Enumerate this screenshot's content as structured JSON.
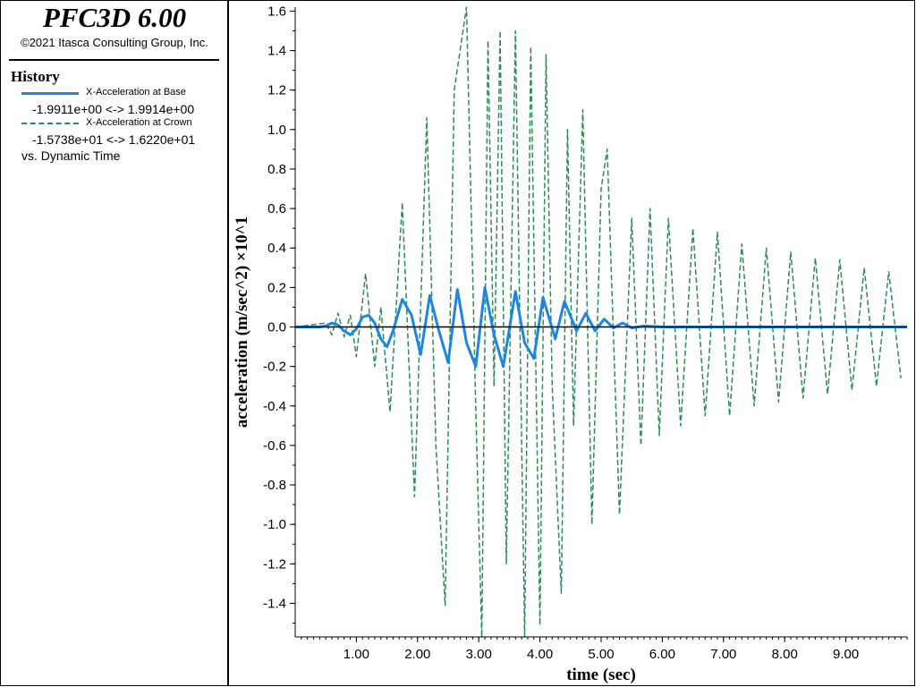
{
  "app": {
    "title": "PFC3D 6.00",
    "copyright": "©2021 Itasca Consulting Group, Inc."
  },
  "legend": {
    "heading": "History",
    "items": [
      {
        "name": "X-Acceleration at Base",
        "range": "-1.9911e+00 <->  1.9914e+00",
        "color": "#1f86e0",
        "style": "solid"
      },
      {
        "name": "X-Acceleration at Crown",
        "range": "-1.5738e+01 <->  1.6220e+01",
        "color": "#2e8b57",
        "style": "dashed"
      }
    ],
    "vs": "vs. Dynamic Time"
  },
  "chart_data": {
    "type": "line",
    "xlabel": "time (sec)",
    "ylabel": "acceleration (m/sec^2) ×10^1",
    "xlim": [
      0,
      10
    ],
    "ylim": [
      -1.57,
      1.62
    ],
    "x_ticks": [
      1,
      2,
      3,
      4,
      5,
      6,
      7,
      8,
      9
    ],
    "x_tick_labels": [
      "1.00",
      "2.00",
      "3.00",
      "4.00",
      "5.00",
      "6.00",
      "7.00",
      "8.00",
      "9.00"
    ],
    "y_ticks": [
      1.6,
      1.4,
      1.2,
      1.0,
      0.8,
      0.6,
      0.4,
      0.2,
      0.0,
      -0.2,
      -0.4,
      -0.6,
      -0.8,
      -1.0,
      -1.2,
      -1.4
    ],
    "y_tick_labels": [
      "1.6",
      "1.4",
      "1.2",
      "1.0",
      "0.8",
      "0.6",
      "0.4",
      "0.2",
      "0.0",
      "-0.2",
      "-0.4",
      "-0.6",
      "-0.8",
      "-1.0",
      "-1.2",
      "-1.4"
    ],
    "zero_line": true,
    "grid": false,
    "series": [
      {
        "name": "X-Acceleration at Base",
        "color": "#1f86e0",
        "style": "solid",
        "x": [
          0,
          0.4,
          0.5,
          0.6,
          0.7,
          0.8,
          0.9,
          1.0,
          1.1,
          1.2,
          1.3,
          1.4,
          1.5,
          1.6,
          1.75,
          1.9,
          2.05,
          2.2,
          2.35,
          2.5,
          2.65,
          2.8,
          2.95,
          3.1,
          3.25,
          3.4,
          3.6,
          3.75,
          3.9,
          4.05,
          4.25,
          4.4,
          4.6,
          4.75,
          4.9,
          5.05,
          5.2,
          5.35,
          5.5,
          5.7,
          6.0,
          10.0
        ],
        "y": [
          0,
          0,
          0.005,
          0.02,
          0.01,
          -0.02,
          -0.04,
          -0.01,
          0.05,
          0.06,
          0.02,
          -0.06,
          -0.1,
          -0.02,
          0.14,
          0.06,
          -0.14,
          0.16,
          -0.02,
          -0.18,
          0.19,
          -0.08,
          -0.2,
          0.2,
          -0.04,
          -0.2,
          0.18,
          -0.08,
          -0.16,
          0.15,
          -0.06,
          0.13,
          -0.02,
          0.07,
          -0.02,
          0.04,
          -0.005,
          0.02,
          -0.005,
          0.005,
          0,
          0
        ]
      },
      {
        "name": "X-Acceleration at Crown",
        "color": "#2e8b57",
        "style": "dashed",
        "x": [
          0,
          0.5,
          0.6,
          0.7,
          0.8,
          0.9,
          1.0,
          1.15,
          1.3,
          1.4,
          1.55,
          1.75,
          1.95,
          2.15,
          2.3,
          2.45,
          2.6,
          2.8,
          2.95,
          3.05,
          3.15,
          3.25,
          3.35,
          3.45,
          3.6,
          3.75,
          3.85,
          4.0,
          4.1,
          4.2,
          4.35,
          4.45,
          4.55,
          4.7,
          4.85,
          5.0,
          5.1,
          5.3,
          5.5,
          5.65,
          5.8,
          5.95,
          6.1,
          6.3,
          6.5,
          6.7,
          6.9,
          7.1,
          7.3,
          7.5,
          7.7,
          7.9,
          8.1,
          8.3,
          8.5,
          8.7,
          8.9,
          9.1,
          9.3,
          9.5,
          9.7,
          9.9
        ],
        "y": [
          0,
          0.02,
          -0.04,
          0.07,
          -0.05,
          0.06,
          -0.15,
          0.27,
          -0.2,
          0.1,
          -0.43,
          0.63,
          -0.86,
          1.06,
          -0.6,
          -1.41,
          1.2,
          1.62,
          -0.4,
          -1.57,
          1.45,
          -0.3,
          1.5,
          -1.2,
          1.5,
          -1.57,
          1.42,
          -1.51,
          1.38,
          -0.3,
          -1.35,
          1.0,
          -0.5,
          1.1,
          -1.0,
          0.7,
          0.9,
          -0.95,
          0.55,
          -0.6,
          0.6,
          -0.55,
          0.55,
          -0.5,
          0.5,
          -0.45,
          0.48,
          -0.45,
          0.42,
          -0.4,
          0.4,
          -0.38,
          0.38,
          -0.36,
          0.35,
          -0.34,
          0.34,
          -0.32,
          0.3,
          -0.3,
          0.28,
          -0.26
        ]
      }
    ]
  }
}
